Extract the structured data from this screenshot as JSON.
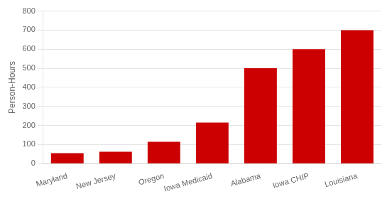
{
  "chart_data": {
    "type": "bar",
    "categories": [
      "Maryland",
      "New Jersey",
      "Oregon",
      "Iowa Medicaid",
      "Alabama",
      "Iowa CHIP",
      "Louisiana"
    ],
    "values": [
      55,
      62,
      115,
      215,
      500,
      600,
      700
    ],
    "color": "#cc0000",
    "ylabel": "Person-Hours",
    "ylim": [
      0,
      800
    ],
    "yticks": [
      0,
      100,
      200,
      300,
      400,
      500,
      600,
      700,
      800
    ],
    "grid": true
  }
}
